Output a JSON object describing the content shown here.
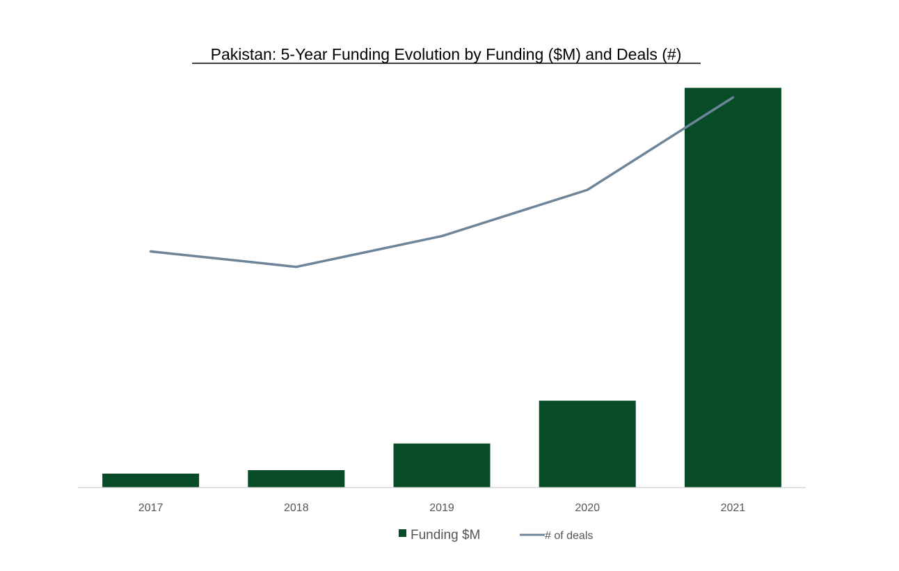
{
  "chart_data": {
    "type": "bar",
    "title": "Pakistan: 5-Year Funding Evolution by Funding ($M) and Deals (#)",
    "categories": [
      "2017",
      "2018",
      "2019",
      "2020",
      "2021"
    ],
    "series": [
      {
        "name": "Funding $M",
        "type": "bar",
        "color": "#074c27",
        "values": [
          12,
          15,
          38,
          75,
          345
        ]
      },
      {
        "name": "# of deals",
        "type": "line",
        "color": "#6e8499",
        "values": [
          46,
          43,
          49,
          58,
          76
        ]
      }
    ],
    "y_axis_primary": {
      "visible": false,
      "ylim": [
        0,
        350
      ]
    },
    "y_axis_secondary": {
      "visible": false,
      "ylim": [
        0,
        79
      ]
    },
    "grid": false,
    "legend_position": "bottom"
  }
}
